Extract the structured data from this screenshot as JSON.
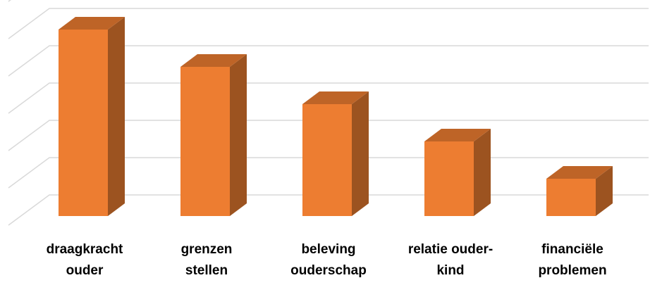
{
  "chart_data": {
    "type": "bar3d",
    "categories": [
      "draagkracht\nouder",
      "grenzen\nstellen",
      "beleving\nouderschap",
      "relatie ouder-\nkind",
      "financiële\nproblemen"
    ],
    "values": [
      5,
      4,
      3,
      2,
      1
    ],
    "color": "#ed7d31",
    "ylim": [
      0,
      6
    ],
    "yticks": [
      0,
      1,
      2,
      3,
      4,
      5,
      6
    ],
    "grid": true
  }
}
